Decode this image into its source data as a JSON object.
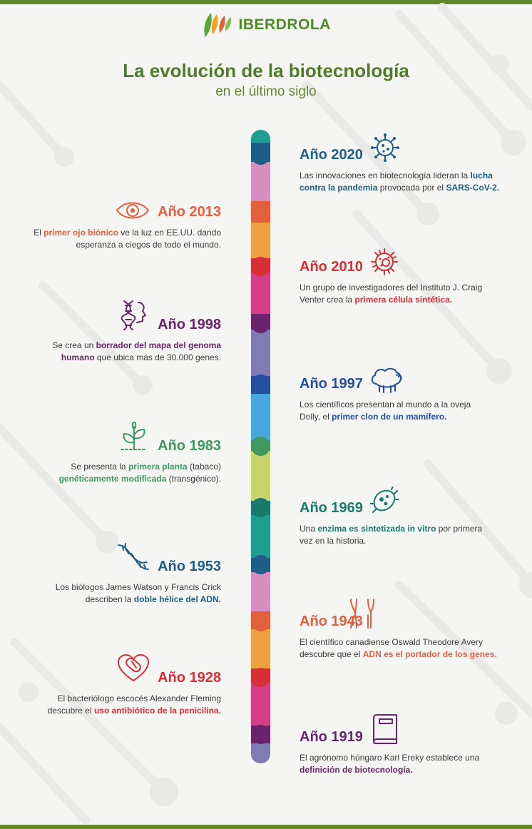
{
  "brand": {
    "name": "IBERDROLA"
  },
  "header": {
    "title": "La evolución de la biotecnología",
    "subtitle": "en el último siglo"
  },
  "colors": {
    "brand_green": "#5f8a2a",
    "teal": "#1f9e8f",
    "navy": "#1f5e86",
    "pink": "#d88fc0",
    "coral": "#e2603c",
    "orange": "#f0a040",
    "red": "#d62f35",
    "magenta": "#d63f86",
    "purple": "#6a246e",
    "lavender": "#7f7bb3",
    "blue": "#244f9e",
    "sky": "#49a7e0",
    "green": "#3e9a5e",
    "lime": "#c6d46a",
    "dark_teal": "#177a6a"
  },
  "events": [
    {
      "side": "right",
      "year": "Año 2020",
      "color": "#1f5e86",
      "icon": "virus-icon",
      "parts": [
        [
          "Las innovaciones en biotecnología lideran la ",
          false
        ],
        [
          "lucha contra la pandemia",
          true
        ],
        [
          " provocada por el ",
          false
        ],
        [
          "SARS-CoV-2.",
          true
        ]
      ]
    },
    {
      "side": "left",
      "year": "Año 2013",
      "color": "#e2603c",
      "icon": "eye-icon",
      "parts": [
        [
          "El ",
          false
        ],
        [
          "primer ojo biónico",
          true
        ],
        [
          " ve la luz en EE.UU. dando esperanza a ciegos de todo el mundo.",
          false
        ]
      ]
    },
    {
      "side": "right",
      "year": "Año 2010",
      "color": "#d62f35",
      "icon": "cell-icon",
      "parts": [
        [
          "Un grupo de investigadores del Instituto J. Craig Venter crea la ",
          false
        ],
        [
          "primera célula sintética.",
          true
        ]
      ]
    },
    {
      "side": "left",
      "year": "Año 1998",
      "color": "#6a246e",
      "icon": "genome-icon",
      "parts": [
        [
          "Se crea un ",
          false
        ],
        [
          "borrador del mapa del genoma humano",
          true
        ],
        [
          " que ubica más de 30.000 genes.",
          false
        ]
      ]
    },
    {
      "side": "right",
      "year": "Año 1997",
      "color": "#244f9e",
      "icon": "sheep-icon",
      "parts": [
        [
          "Los científicos presentan al mundo a la oveja Dolly, el ",
          false
        ],
        [
          "primer clon de un mamífero.",
          true
        ]
      ]
    },
    {
      "side": "left",
      "year": "Año 1983",
      "color": "#3e9a5e",
      "icon": "plant-icon",
      "parts": [
        [
          "Se presenta la ",
          false
        ],
        [
          "primera planta",
          true
        ],
        [
          " (tabaco) ",
          false
        ],
        [
          "genéticamente modificada",
          true
        ],
        [
          " (transgénico).",
          false
        ]
      ]
    },
    {
      "side": "right",
      "year": "Año 1969",
      "color": "#177a6a",
      "icon": "enzyme-icon",
      "parts": [
        [
          "Una ",
          false
        ],
        [
          "enzima es sintetizada in vitro",
          true
        ],
        [
          " por primera vez en la historia.",
          false
        ]
      ]
    },
    {
      "side": "left",
      "year": "Año 1953",
      "color": "#1f5e86",
      "icon": "dna-icon",
      "parts": [
        [
          "Los biólogos James Watson y Francis Crick describen la ",
          false
        ],
        [
          "doble hélice del ADN.",
          true
        ]
      ]
    },
    {
      "side": "right",
      "year": "Año 1943",
      "color": "#e2603c",
      "icon": "chromosome-icon",
      "parts": [
        [
          "El científico canadiense Oswald Theodore Avery descubre que el ",
          false
        ],
        [
          "ADN es el portador de los genes.",
          true
        ]
      ]
    },
    {
      "side": "left",
      "year": "Año 1928",
      "color": "#d62f35",
      "icon": "pill-icon",
      "parts": [
        [
          "El bacteriólogo escocés Alexander Fleming descubre el ",
          false
        ],
        [
          "uso antibiótico de la penicilina.",
          true
        ]
      ]
    },
    {
      "side": "right",
      "year": "Año 1919",
      "color": "#6a246e",
      "icon": "book-icon",
      "parts": [
        [
          "El agrónomo húngaro Karl Ereky establece una ",
          false
        ],
        [
          "definición de biotecnología.",
          true
        ]
      ]
    }
  ]
}
